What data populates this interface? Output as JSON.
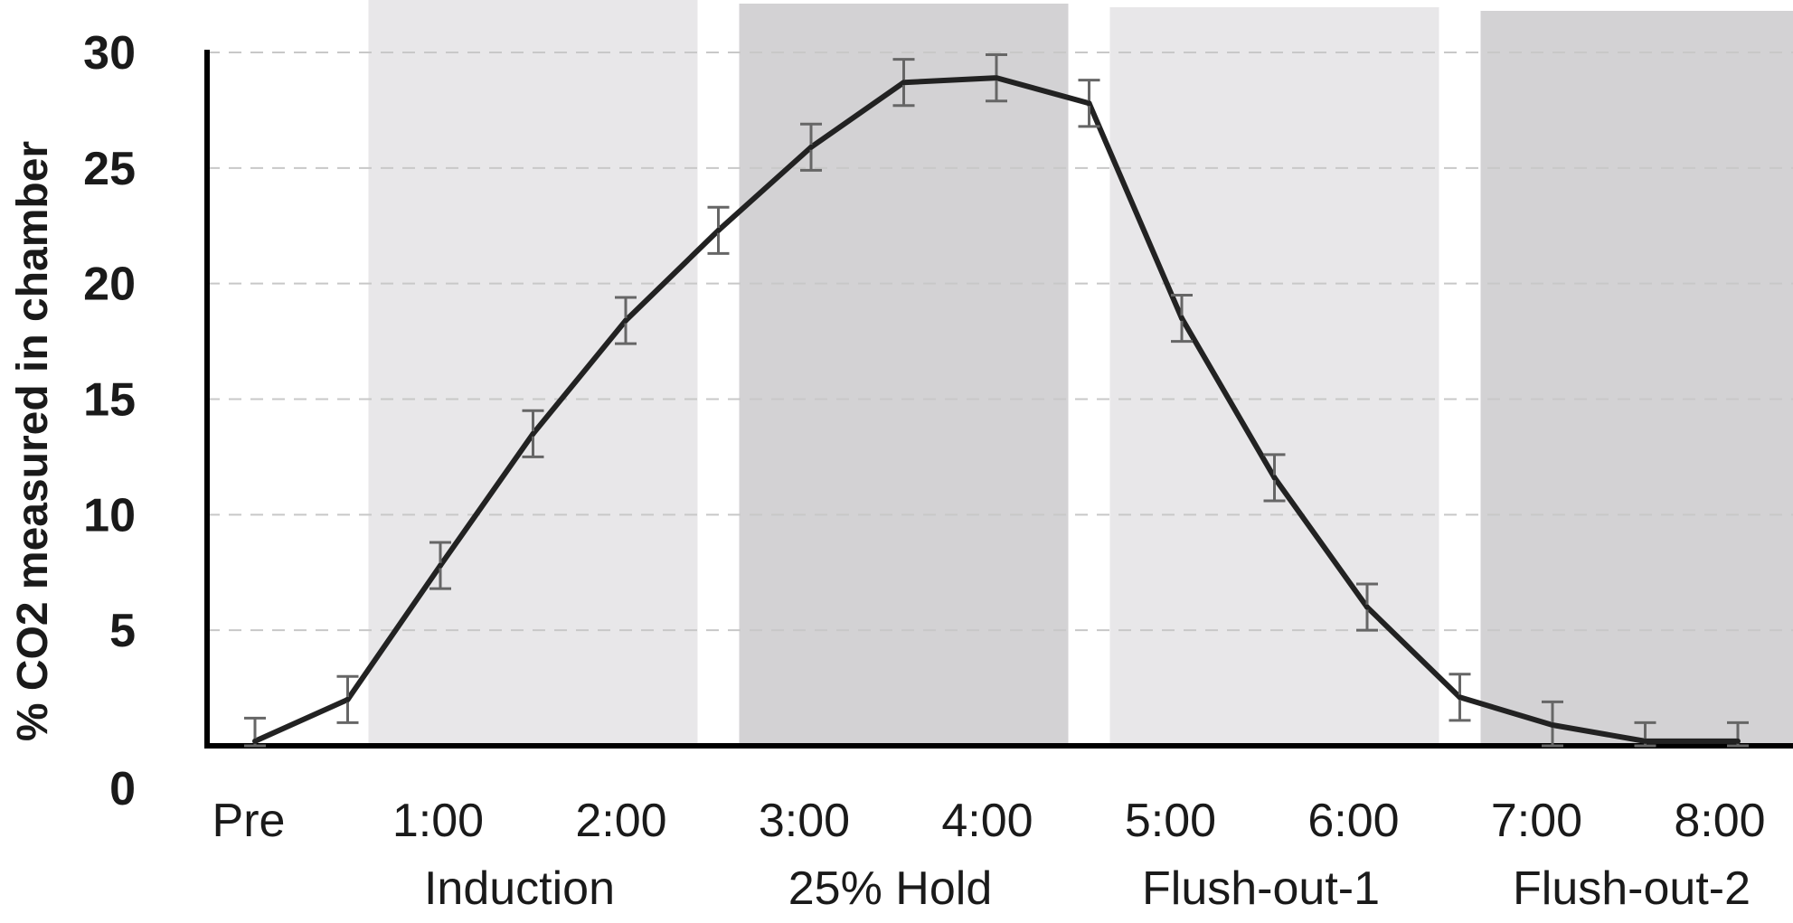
{
  "chart_data": {
    "type": "line",
    "title": "",
    "ylabel": "% CO2 measured in chamber",
    "xlabel": "",
    "ylim": [
      0,
      30
    ],
    "y_ticks": [
      0,
      5,
      10,
      15,
      20,
      25,
      30
    ],
    "x_tick_labels": [
      {
        "label": "Pre",
        "x": 0
      },
      {
        "label": "1:00",
        "x": 1
      },
      {
        "label": "2:00",
        "x": 2
      },
      {
        "label": "3:00",
        "x": 3
      },
      {
        "label": "4:00",
        "x": 4
      },
      {
        "label": "5:00",
        "x": 5
      },
      {
        "label": "6:00",
        "x": 6
      },
      {
        "label": "7:00",
        "x": 7
      },
      {
        "label": "8:00",
        "x": 8
      }
    ],
    "grid": "horizontal-dashed",
    "phases": [
      {
        "label": "Induction",
        "start": 0.5,
        "end": 2.5,
        "color": "#e8e7e9"
      },
      {
        "label": "25% Hold",
        "start": 2.5,
        "end": 4.5,
        "color": "#d3d2d4"
      },
      {
        "label": "Flush-out-1",
        "start": 4.5,
        "end": 6.5,
        "color": "#e8e7e9"
      },
      {
        "label": "Flush-out-2",
        "start": 6.5,
        "end": 8.5,
        "color": "#d3d2d4"
      }
    ],
    "series": [
      {
        "color": "#222222",
        "errorbar_color": "#666666",
        "x": [
          0,
          0.5,
          1,
          1.5,
          2,
          2.5,
          3,
          3.5,
          4,
          4.5,
          5,
          5.5,
          6,
          6.5,
          7,
          7.5,
          8
        ],
        "y": [
          0.2,
          2.0,
          7.8,
          13.5,
          18.4,
          22.3,
          25.9,
          28.7,
          28.9,
          27.8,
          18.5,
          11.6,
          6.0,
          2.1,
          0.9,
          0.2,
          0.2
        ],
        "error": [
          1.0,
          1.0,
          1.0,
          1.0,
          1.0,
          1.0,
          1.0,
          1.0,
          1.0,
          1.0,
          1.0,
          1.0,
          1.0,
          1.0,
          1.0,
          0.8,
          0.8
        ]
      }
    ]
  }
}
